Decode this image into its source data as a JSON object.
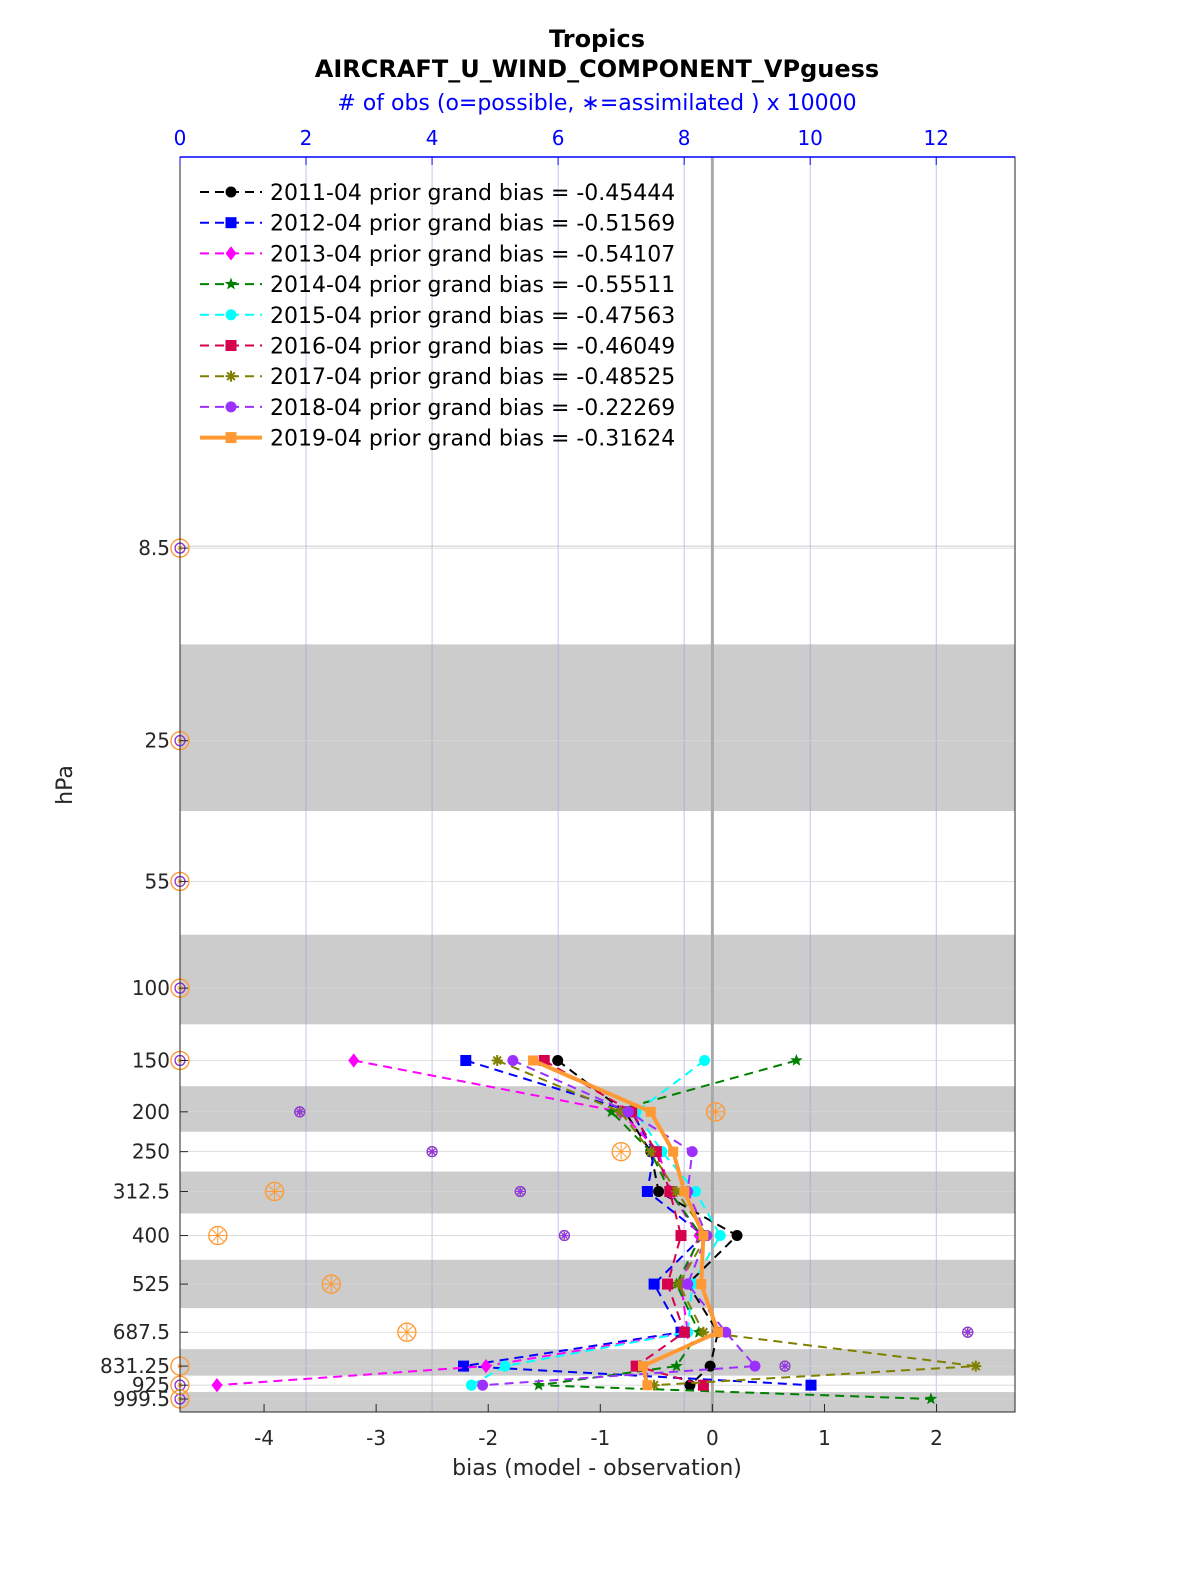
{
  "chart_data": {
    "type": "line",
    "title": "Tropics",
    "subtitle": "AIRCRAFT_U_WIND_COMPONENT_VPguess",
    "top_axis_label": "# of obs (o=possible, ∗=assimilated ) x 10000",
    "xlabel": "bias (model - observation)",
    "ylabel": "hPa",
    "xlim": [
      -4.75,
      2.7
    ],
    "top_xlim": [
      0,
      13.25
    ],
    "x_ticks": [
      "-4",
      "-3",
      "-2",
      "-1",
      "0",
      "1",
      "2"
    ],
    "top_ticks": [
      "0",
      "2",
      "4",
      "6",
      "8",
      "10",
      "12"
    ],
    "y_log_scale": true,
    "ylim": [
      1075,
      0.95
    ],
    "levels": [
      8.5,
      25,
      55,
      100,
      150,
      200,
      250,
      312.5,
      400,
      525,
      687.5,
      831.25,
      925,
      999.5
    ],
    "level_labels": [
      "8.5",
      "25",
      "55",
      "100",
      "150",
      "200",
      "250",
      "312.5",
      "400",
      "525",
      "687.5",
      "831.25",
      "925",
      "999.5"
    ],
    "legend_location": "top-left",
    "series": [
      {
        "name": "2011-04 prior grand bias = -0.45444",
        "color": "#000000",
        "marker": "circle",
        "line": "dashed",
        "bias": [
          null,
          null,
          null,
          null,
          -1.38,
          -0.78,
          -0.55,
          -0.48,
          0.22,
          -0.22,
          0.05,
          -0.02,
          -0.2,
          null
        ],
        "obs_possible": [
          0,
          0,
          0,
          0,
          0,
          1.9,
          4.0,
          5.4,
          6.1,
          8.1,
          12.5,
          9.6,
          0,
          0
        ],
        "obs_assimilated": [
          0,
          0,
          0,
          0,
          0,
          1.9,
          4.0,
          5.4,
          6.1,
          8.1,
          12.5,
          9.6,
          0,
          0
        ]
      },
      {
        "name": "2012-04 prior grand bias = -0.51569",
        "color": "#0000ff",
        "marker": "square",
        "line": "dashed",
        "bias": [
          null,
          null,
          null,
          null,
          -2.2,
          -0.72,
          -0.52,
          -0.58,
          -0.08,
          -0.52,
          -0.28,
          -2.22,
          0.88,
          null
        ],
        "obs_possible": [
          0,
          0,
          0,
          0,
          0,
          1.9,
          4.0,
          5.4,
          6.1,
          8.1,
          12.5,
          9.6,
          0,
          0
        ],
        "obs_assimilated": [
          0,
          0,
          0,
          0,
          0,
          1.9,
          4.0,
          5.4,
          6.1,
          8.1,
          12.5,
          9.6,
          0,
          0
        ]
      },
      {
        "name": "2013-04 prior grand bias = -0.54107",
        "color": "#ff00ff",
        "marker": "diamond",
        "line": "dashed",
        "bias": [
          null,
          null,
          null,
          null,
          -3.2,
          -0.82,
          -0.48,
          -0.38,
          -0.12,
          -0.28,
          -0.22,
          -2.02,
          -4.42,
          null
        ],
        "obs_possible": [
          0,
          0,
          0,
          0,
          0,
          1.9,
          4.0,
          5.4,
          6.1,
          8.1,
          12.5,
          9.6,
          0,
          0
        ],
        "obs_assimilated": [
          0,
          0,
          0,
          0,
          0,
          1.9,
          4.0,
          5.4,
          6.1,
          8.1,
          12.5,
          9.6,
          0,
          0
        ]
      },
      {
        "name": "2014-04 prior grand bias = -0.55511",
        "color": "#008000",
        "marker": "star",
        "line": "dashed",
        "bias": [
          null,
          null,
          null,
          null,
          0.75,
          -0.9,
          -0.55,
          -0.38,
          -0.1,
          -0.32,
          -0.12,
          -0.32,
          -1.55,
          1.95
        ],
        "obs_possible": [
          0,
          0,
          0,
          0,
          0,
          1.9,
          4.0,
          5.4,
          6.1,
          8.1,
          12.5,
          9.6,
          0,
          0
        ],
        "obs_assimilated": [
          0,
          0,
          0,
          0,
          0,
          1.9,
          4.0,
          5.4,
          6.1,
          8.1,
          12.5,
          9.6,
          0,
          0
        ]
      },
      {
        "name": "2015-04 prior grand bias = -0.47563",
        "color": "#00ffff",
        "marker": "circle",
        "line": "dashed",
        "bias": [
          null,
          null,
          null,
          null,
          -0.07,
          -0.68,
          -0.45,
          -0.15,
          0.07,
          -0.18,
          -0.22,
          -1.85,
          -2.15,
          null
        ],
        "obs_possible": [
          0,
          0,
          0,
          0,
          0,
          1.9,
          4.0,
          5.4,
          6.1,
          8.1,
          12.5,
          9.6,
          0,
          0
        ],
        "obs_assimilated": [
          0,
          0,
          0,
          0,
          0,
          1.9,
          4.0,
          5.4,
          6.1,
          8.1,
          12.5,
          9.6,
          0,
          0
        ]
      },
      {
        "name": "2016-04 prior grand bias = -0.46049",
        "color": "#d6004f",
        "marker": "square",
        "line": "dashed",
        "bias": [
          null,
          null,
          null,
          null,
          -1.5,
          -0.72,
          -0.5,
          -0.38,
          -0.28,
          -0.4,
          -0.25,
          -0.68,
          -0.08,
          null
        ],
        "obs_possible": [
          0,
          0,
          0,
          0,
          0,
          1.9,
          4.0,
          5.4,
          6.1,
          8.1,
          12.5,
          9.6,
          0,
          0
        ],
        "obs_assimilated": [
          0,
          0,
          0,
          0,
          0,
          1.9,
          4.0,
          5.4,
          6.1,
          8.1,
          12.5,
          9.6,
          0,
          0
        ]
      },
      {
        "name": "2017-04 prior grand bias = -0.48525",
        "color": "#808000",
        "marker": "asterisk",
        "line": "dashed",
        "bias": [
          null,
          null,
          null,
          null,
          -1.92,
          -0.82,
          -0.55,
          -0.32,
          -0.05,
          -0.3,
          -0.08,
          2.35,
          -0.52,
          null
        ],
        "obs_possible": [
          0,
          0,
          0,
          0,
          0,
          1.9,
          4.0,
          5.4,
          6.1,
          8.1,
          12.5,
          9.6,
          0,
          0
        ],
        "obs_assimilated": [
          0,
          0,
          0,
          0,
          0,
          1.9,
          4.0,
          5.4,
          6.1,
          8.1,
          12.5,
          9.6,
          0,
          0
        ]
      },
      {
        "name": "2018-04 prior grand bias = -0.22269",
        "color": "#9b30ff",
        "marker": "circle",
        "line": "dashed",
        "bias": [
          null,
          null,
          null,
          null,
          -1.78,
          -0.75,
          -0.18,
          -0.22,
          -0.05,
          -0.22,
          0.12,
          0.38,
          -2.05,
          null
        ],
        "obs_possible": [
          0,
          0,
          0,
          0,
          0,
          1.9,
          4.0,
          5.4,
          6.1,
          8.1,
          12.5,
          9.6,
          0,
          0
        ],
        "obs_assimilated": [
          0,
          0,
          0,
          0,
          0,
          1.9,
          4.0,
          5.4,
          6.1,
          8.1,
          12.5,
          9.6,
          0,
          0
        ]
      },
      {
        "name": "2019-04 prior grand bias = -0.31624",
        "color": "#ff9933",
        "marker": "square",
        "line": "solid",
        "bias": [
          null,
          null,
          null,
          null,
          -1.6,
          -0.55,
          -0.35,
          -0.25,
          -0.08,
          -0.1,
          0.05,
          -0.62,
          -0.58,
          null
        ],
        "obs_possible": [
          0,
          0,
          0,
          0,
          0,
          8.5,
          7.0,
          1.5,
          0.6,
          2.4,
          3.6,
          0,
          0,
          0
        ],
        "obs_assimilated": [
          0,
          0,
          0,
          0,
          0,
          8.5,
          7.0,
          1.5,
          0.6,
          2.4,
          3.6,
          0,
          0,
          0
        ]
      }
    ]
  }
}
